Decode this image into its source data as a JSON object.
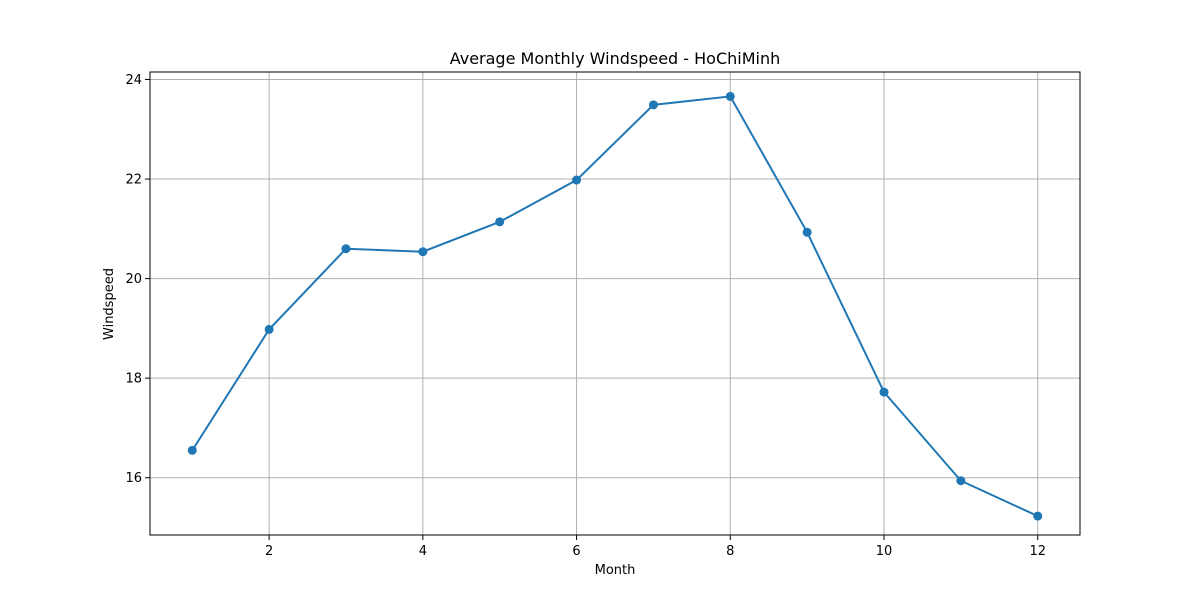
{
  "chart_data": {
    "type": "line",
    "title": "Average Monthly Windspeed - HoChiMinh",
    "xlabel": "Month",
    "ylabel": "Windspeed",
    "x": [
      1,
      2,
      3,
      4,
      5,
      6,
      7,
      8,
      9,
      10,
      11,
      12
    ],
    "series": [
      {
        "values": [
          16.55,
          18.98,
          20.6,
          20.54,
          21.14,
          21.98,
          23.49,
          23.66,
          20.93,
          17.72,
          15.94,
          15.23
        ],
        "color": "#1f77b4",
        "marker": "circle"
      }
    ],
    "xlim": [
      0.45,
      12.55
    ],
    "ylim": [
      14.85,
      24.15
    ],
    "xticks": [
      2,
      4,
      6,
      8,
      10,
      12
    ],
    "yticks": [
      16,
      18,
      20,
      22,
      24
    ],
    "grid": true
  }
}
